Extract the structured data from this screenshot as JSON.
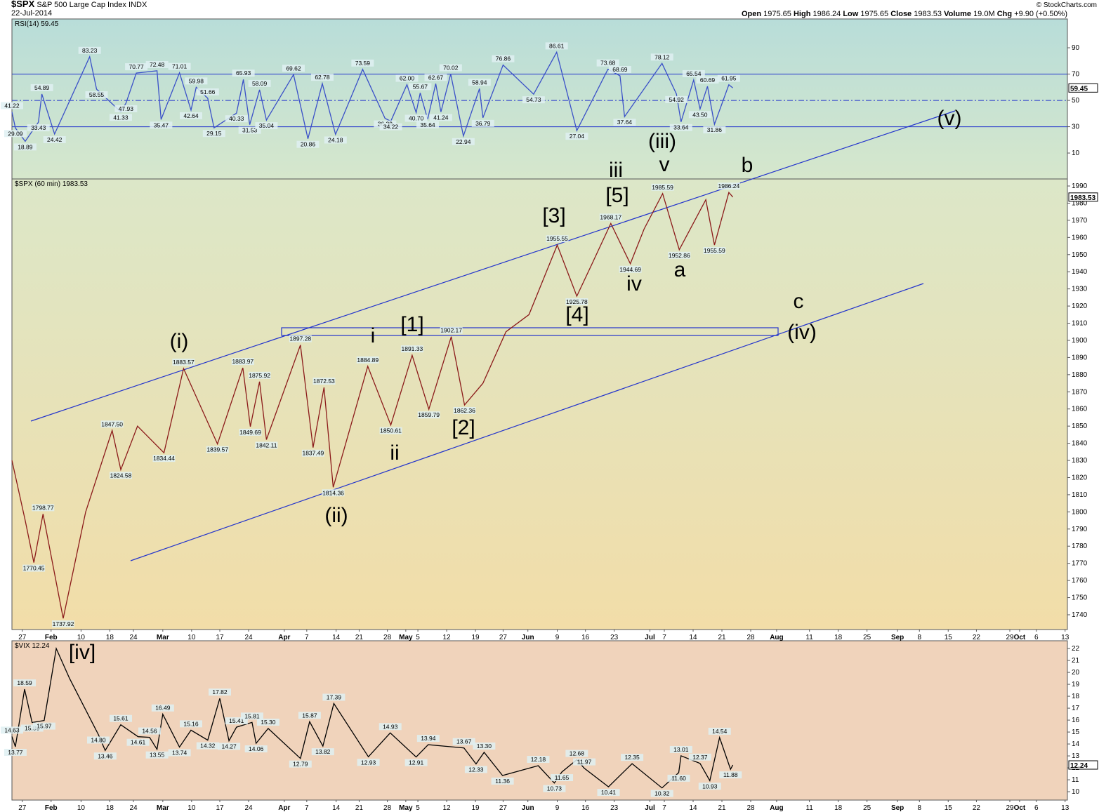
{
  "header": {
    "symbol": "$SPX",
    "name": "S&P 500 Large Cap Index",
    "exchange": "INDX",
    "date": "22-Jul-2014",
    "open_label": "Open",
    "open": 1975.65,
    "high_label": "High",
    "high": 1986.24,
    "low_label": "Low",
    "low": 1975.65,
    "close_label": "Close",
    "close": 1983.53,
    "volume_label": "Volume",
    "volume": "19.0M",
    "chg_label": "Chg",
    "chg": "+9.90 (+0.50%)",
    "credit": "© StockCharts.com"
  },
  "chart_data": [
    {
      "type": "line",
      "title": "RSI(14)",
      "ylim": [
        -9.7,
        111.9
      ],
      "yticks": [
        10,
        30,
        50,
        70,
        90
      ],
      "reference_lines": [
        70,
        50,
        30
      ],
      "series": [
        {
          "color": "#3a50c8",
          "x": [
            -1.8,
            -1.2,
            0.5,
            2.8,
            3.4,
            5.6,
            11.7,
            12.9,
            17.1,
            18.0,
            19.8,
            23.4,
            24.1,
            27.3,
            29.3,
            30.2,
            32.2,
            33.3,
            37.2,
            38.4,
            39.5,
            41.2,
            42.4,
            47.1,
            49.6,
            52.1,
            54.4,
            59.1,
            63.0,
            64.0,
            66.8,
            68.4,
            69.1,
            70.4,
            71.8,
            72.7,
            74.4,
            76.6,
            79.4,
            80.0,
            83.5,
            88.8,
            92.8,
            96.3,
            101.7,
            103.8,
            104.6,
            111.1,
            113.6,
            114.4,
            116.6,
            117.7,
            119.0,
            120.2,
            122.7,
            123.4
          ],
          "values": [
            41.22,
            29.09,
            18.89,
            33.43,
            54.89,
            24.42,
            83.23,
            58.55,
            41.33,
            47.93,
            70.77,
            72.48,
            35.47,
            71.01,
            42.64,
            59.98,
            51.66,
            29.15,
            40.33,
            65.93,
            31.53,
            58.09,
            35.04,
            69.62,
            20.86,
            62.78,
            24.18,
            73.59,
            36.39,
            34.22,
            62.0,
            40.7,
            55.67,
            35.64,
            62.67,
            41.24,
            70.02,
            22.94,
            58.94,
            36.79,
            76.86,
            54.73,
            86.61,
            27.04,
            73.68,
            68.69,
            37.64,
            78.12,
            54.92,
            33.64,
            65.54,
            43.5,
            60.69,
            31.86,
            61.95,
            59.45
          ],
          "value_labels": [
            "41.22",
            "29.09",
            "18.89",
            "33.43",
            "54.89",
            "24.42",
            "83.23",
            "58.55",
            "41.33",
            "47.93",
            "70.77",
            "72.48",
            "35.47",
            "71.01",
            "42.64",
            "59.98",
            "51.66",
            "29.15",
            "40.33",
            "65.93",
            "31.53",
            "58.09",
            "35.04",
            "69.62",
            "20.86",
            "62.78",
            "24.18",
            "73.59",
            "36.39",
            "34.22",
            "62.00",
            "40.70",
            "55.67",
            "35.64",
            "62.67",
            "41.24",
            "70.02",
            "22.94",
            "58.94",
            "36.79",
            "76.86",
            "54.73",
            "86.61",
            "27.04",
            "73.68",
            "68.69",
            "37.64",
            "78.12",
            "54.92",
            "33.64",
            "65.54",
            "43.50",
            "60.69",
            "31.86",
            "61.95",
            null
          ]
        }
      ]
    },
    {
      "type": "line",
      "title": "$SPX (60 min)",
      "xlim": [
        -1.8,
        181.5
      ],
      "ylim": [
        1731.4,
        1994.1
      ],
      "yticks": [
        1740,
        1750,
        1760,
        1770,
        1780,
        1790,
        1800,
        1810,
        1820,
        1830,
        1840,
        1850,
        1860,
        1870,
        1880,
        1890,
        1900,
        1910,
        1920,
        1930,
        1940,
        1950,
        1960,
        1970,
        1980,
        1990
      ],
      "xticks": [
        {
          "value": 0,
          "label": "27"
        },
        {
          "value": 5,
          "label": "Feb"
        },
        {
          "value": 10.2,
          "label": "10"
        },
        {
          "value": 15.2,
          "label": "18"
        },
        {
          "value": 19.3,
          "label": "24"
        },
        {
          "value": 24.4,
          "label": "Mar"
        },
        {
          "value": 29.4,
          "label": "10"
        },
        {
          "value": 34.3,
          "label": "17"
        },
        {
          "value": 39.3,
          "label": "24"
        },
        {
          "value": 45.5,
          "label": "Apr"
        },
        {
          "value": 49.4,
          "label": "7"
        },
        {
          "value": 54.5,
          "label": "14"
        },
        {
          "value": 58.5,
          "label": "21"
        },
        {
          "value": 63.4,
          "label": "28"
        },
        {
          "value": 66.6,
          "label": "May"
        },
        {
          "value": 68.7,
          "label": "5"
        },
        {
          "value": 73.7,
          "label": "12"
        },
        {
          "value": 78.7,
          "label": "19"
        },
        {
          "value": 83.5,
          "label": "27"
        },
        {
          "value": 87.8,
          "label": "Jun"
        },
        {
          "value": 92.9,
          "label": "9"
        },
        {
          "value": 97.8,
          "label": "16"
        },
        {
          "value": 102.8,
          "label": "23"
        },
        {
          "value": 109,
          "label": "Jul"
        },
        {
          "value": 111.5,
          "label": "7"
        },
        {
          "value": 116.5,
          "label": "14"
        },
        {
          "value": 121.5,
          "label": "21"
        },
        {
          "value": 126.5,
          "label": "28"
        },
        {
          "value": 131,
          "label": "Aug"
        },
        {
          "value": 136.7,
          "label": "11"
        },
        {
          "value": 141.7,
          "label": "18"
        },
        {
          "value": 146.7,
          "label": "25"
        },
        {
          "value": 152,
          "label": "Sep"
        },
        {
          "value": 155.8,
          "label": "8"
        },
        {
          "value": 160.8,
          "label": "15"
        },
        {
          "value": 165.7,
          "label": "22"
        },
        {
          "value": 171.5,
          "label": "29"
        },
        {
          "value": 173.2,
          "label": "Oct"
        },
        {
          "value": 176.1,
          "label": "6"
        },
        {
          "value": 181.1,
          "label": "13"
        }
      ],
      "series": [
        {
          "color": "#8b1a1a",
          "x": [
            -1.8,
            0.5,
            2.0,
            3.6,
            7.1,
            11.0,
            15.6,
            17.1,
            20.0,
            24.6,
            28.0,
            33.9,
            38.3,
            39.6,
            41.2,
            42.4,
            48.3,
            50.5,
            52.4,
            54.0,
            60.0,
            64.0,
            67.7,
            70.6,
            74.5,
            76.8,
            80.0,
            84.0,
            88.0,
            92.9,
            96.3,
            99.0,
            102.2,
            105.6,
            108.0,
            111.2,
            114.1,
            118.7,
            120.2,
            122.7,
            123.4
          ],
          "values": [
            1830,
            1795,
            1770.45,
            1798.77,
            1737.92,
            1800,
            1847.5,
            1824.58,
            1850,
            1834.44,
            1883.57,
            1839.57,
            1883.97,
            1849.69,
            1875.92,
            1842.11,
            1897.28,
            1837.49,
            1872.53,
            1814.36,
            1884.89,
            1850.61,
            1891.33,
            1859.79,
            1902.17,
            1862.36,
            1875,
            1905,
            1915,
            1955.55,
            1925.78,
            1945,
            1968.17,
            1944.69,
            1965,
            1985.59,
            1952.86,
            1982,
            1955.59,
            1986.24,
            1983.53
          ],
          "value_labels": [
            null,
            null,
            "1770.45",
            "1798.77",
            "1737.92",
            null,
            "1847.50",
            "1824.58",
            null,
            "1834.44",
            "1883.57",
            "1839.57",
            "1883.97",
            "1849.69",
            "1875.92",
            "1842.11",
            "1897.28",
            "1837.49",
            "1872.53",
            "1814.36",
            "1884.89",
            "1850.61",
            "1891.33",
            "1859.79",
            "1902.17",
            "1862.36",
            null,
            null,
            null,
            "1955.55",
            "1925.78",
            null,
            "1968.17",
            "1944.69",
            null,
            "1985.59",
            "1952.86",
            null,
            "1955.59",
            "1986.24",
            null
          ]
        }
      ],
      "wave_labels": [
        "(i)",
        "(ii)",
        "(iii)",
        "(iv)",
        "(v)",
        "i",
        "ii",
        "iii",
        "iv",
        "v",
        "a",
        "b",
        "c",
        "[1]",
        "[2]",
        "[3]",
        "[4]",
        "[5]"
      ]
    },
    {
      "type": "line",
      "title": "$VIX",
      "xlim": [
        -1.8,
        181.5
      ],
      "ylim": [
        9.3,
        22.65
      ],
      "yticks": [
        10,
        11,
        12,
        13,
        14,
        15,
        16,
        17,
        18,
        19,
        20,
        21,
        22
      ],
      "xticks": [
        {
          "value": 0,
          "label": "27"
        },
        {
          "value": 5,
          "label": "Feb"
        },
        {
          "value": 10.2,
          "label": "10"
        },
        {
          "value": 15.2,
          "label": "18"
        },
        {
          "value": 19.3,
          "label": "24"
        },
        {
          "value": 24.4,
          "label": "Mar"
        },
        {
          "value": 29.4,
          "label": "10"
        },
        {
          "value": 34.3,
          "label": "17"
        },
        {
          "value": 39.3,
          "label": "24"
        },
        {
          "value": 45.5,
          "label": "Apr"
        },
        {
          "value": 49.4,
          "label": "7"
        },
        {
          "value": 54.5,
          "label": "14"
        },
        {
          "value": 58.5,
          "label": "21"
        },
        {
          "value": 63.4,
          "label": "28"
        },
        {
          "value": 66.6,
          "label": "May"
        },
        {
          "value": 68.7,
          "label": "5"
        },
        {
          "value": 73.7,
          "label": "12"
        },
        {
          "value": 78.7,
          "label": "19"
        },
        {
          "value": 83.5,
          "label": "27"
        },
        {
          "value": 87.8,
          "label": "Jun"
        },
        {
          "value": 92.9,
          "label": "9"
        },
        {
          "value": 97.8,
          "label": "16"
        },
        {
          "value": 102.8,
          "label": "23"
        },
        {
          "value": 109,
          "label": "Jul"
        },
        {
          "value": 111.5,
          "label": "7"
        },
        {
          "value": 116.5,
          "label": "14"
        },
        {
          "value": 121.5,
          "label": "21"
        },
        {
          "value": 126.5,
          "label": "28"
        },
        {
          "value": 131,
          "label": "Aug"
        },
        {
          "value": 136.7,
          "label": "11"
        },
        {
          "value": 141.7,
          "label": "18"
        },
        {
          "value": 146.7,
          "label": "25"
        },
        {
          "value": 152,
          "label": "Sep"
        },
        {
          "value": 155.8,
          "label": "8"
        },
        {
          "value": 160.8,
          "label": "15"
        },
        {
          "value": 165.7,
          "label": "22"
        },
        {
          "value": 171.5,
          "label": "29"
        },
        {
          "value": 173.2,
          "label": "Oct"
        },
        {
          "value": 176.1,
          "label": "6"
        },
        {
          "value": 181.1,
          "label": "13"
        }
      ],
      "series": [
        {
          "color": "#000000",
          "x": [
            -1.8,
            -1.2,
            0.4,
            1.7,
            3.8,
            5.9,
            8.2,
            13.2,
            14.4,
            17.1,
            20.1,
            22.1,
            23.4,
            24.4,
            27.3,
            29.3,
            32.2,
            34.3,
            35.9,
            37.2,
            39.9,
            40.6,
            42.7,
            48.3,
            49.9,
            52.2,
            54.1,
            60.1,
            63.9,
            68.4,
            70.5,
            76.7,
            78.8,
            80.2,
            83.4,
            89.6,
            92.4,
            93.7,
            96.3,
            97.6,
            101.8,
            105.9,
            111.1,
            114.0,
            114.4,
            117.7,
            119.4,
            121.1,
            123.0,
            123.4
          ],
          "values": [
            14.63,
            13.77,
            18.59,
            15.8,
            15.97,
            22.0,
            19.5,
            14.8,
            13.46,
            15.61,
            14.61,
            14.56,
            13.55,
            16.49,
            13.74,
            15.16,
            14.32,
            17.82,
            14.27,
            15.41,
            15.81,
            14.06,
            15.3,
            12.79,
            15.87,
            13.82,
            17.39,
            12.93,
            14.93,
            12.91,
            13.94,
            13.67,
            12.33,
            13.3,
            11.36,
            12.18,
            10.73,
            11.65,
            12.68,
            11.97,
            10.41,
            12.35,
            10.32,
            11.6,
            13.01,
            12.37,
            10.93,
            14.54,
            11.88,
            12.24
          ],
          "value_labels": [
            "14.63",
            "13.77",
            "18.59",
            "15.80",
            "15.97",
            null,
            null,
            "14.80",
            "13.46",
            "15.61",
            "14.61",
            "14.56",
            "13.55",
            "16.49",
            "13.74",
            "15.16",
            "14.32",
            "17.82",
            "14.27",
            "15.41",
            "15.81",
            "14.06",
            "15.30",
            "12.79",
            "15.87",
            "13.82",
            "17.39",
            "12.93",
            "14.93",
            "12.91",
            "13.94",
            "13.67",
            "12.33",
            "13.30",
            "11.36",
            "12.18",
            "10.73",
            "11.65",
            "12.68",
            "11.97",
            "10.41",
            "12.35",
            "10.32",
            "11.60",
            "13.01",
            "12.37",
            "10.93",
            "14.54",
            "11.88",
            null
          ]
        }
      ],
      "wave_labels": [
        "[iv]"
      ]
    }
  ]
}
